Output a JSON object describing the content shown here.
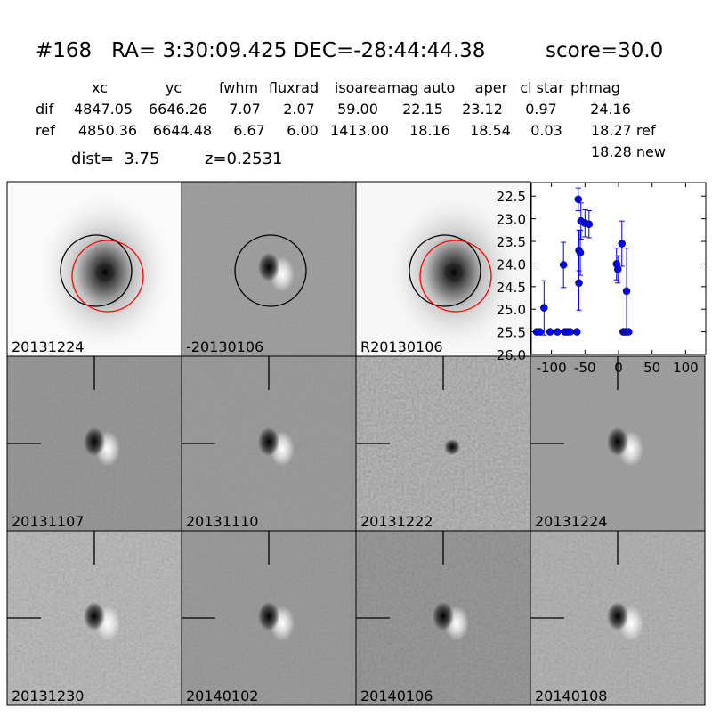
{
  "header": {
    "title": "#168   RA= 3:30:09.425 DEC=-28:44:44.38",
    "score": "score=30.0"
  },
  "table": {
    "columns": [
      "xc",
      "yc",
      "fwhm",
      "fluxrad",
      "isoarea",
      "mag auto",
      "aper",
      "cl star",
      "phmag"
    ],
    "rows": [
      [
        "dif",
        "4847.05",
        "6646.26",
        "7.07",
        "2.07",
        "59.00",
        "22.15",
        "23.12",
        "0.97",
        "24.16"
      ],
      [
        "ref",
        "4850.36",
        "6644.48",
        "6.67",
        "6.00",
        "1413.00",
        "18.16",
        "18.54",
        "0.03",
        "18.27 ref"
      ]
    ],
    "extra": "18.28 new"
  },
  "dist": "dist=  3.75",
  "z": "z=0.2531",
  "stamps": [
    {
      "label": "20131224"
    },
    {
      "label": "-20130106"
    },
    {
      "label": "R20130106"
    },
    {
      "label": "20131107"
    },
    {
      "label": "20131110"
    },
    {
      "label": "20131222"
    },
    {
      "label": "20131224",
      "color": "#ff0000"
    },
    {
      "label": "20131230"
    },
    {
      "label": "20140102"
    },
    {
      "label": "20140106"
    },
    {
      "label": "20140108"
    }
  ],
  "chart_data": {
    "type": "scatter",
    "color": "#0000ff",
    "x": [
      -122,
      -117,
      -111,
      -102,
      -91,
      -82,
      -80,
      -76,
      -72,
      -62,
      -60,
      -59,
      -59,
      -57,
      -56,
      -50,
      -44,
      -3,
      -1,
      5,
      7,
      10,
      12,
      15
    ],
    "values": [
      25.5,
      25.5,
      24.97,
      25.5,
      25.5,
      24.02,
      25.5,
      25.5,
      25.5,
      25.5,
      22.57,
      23.7,
      24.42,
      23.75,
      23.05,
      23.1,
      23.12,
      24.0,
      24.12,
      23.55,
      25.5,
      25.5,
      24.6,
      25.5
    ],
    "errors": [
      null,
      null,
      0.6,
      null,
      null,
      0.5,
      null,
      null,
      null,
      null,
      0.25,
      0.45,
      0.6,
      0.5,
      0.4,
      0.3,
      0.3,
      0.35,
      0.3,
      0.5,
      null,
      null,
      0.95,
      null
    ],
    "xlim": [
      -130,
      130
    ],
    "ylim": [
      26.0,
      22.2
    ],
    "xticks": [
      -100,
      -50,
      0,
      50,
      100
    ],
    "yticks": [
      22.5,
      23.0,
      23.5,
      24.0,
      24.5,
      25.0,
      25.5,
      26.0
    ]
  }
}
